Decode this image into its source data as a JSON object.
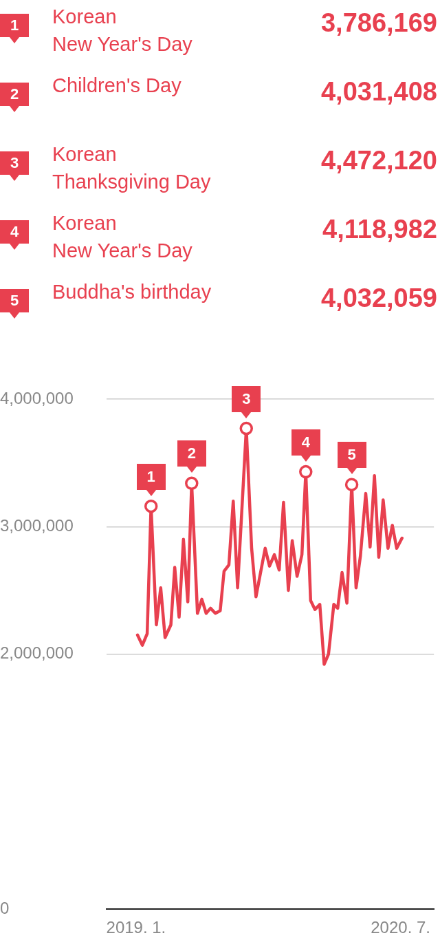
{
  "chart_data": {
    "type": "line",
    "x": [
      "2019-01-04",
      "2019-01-14",
      "2019-01-24",
      "2019-02-01",
      "2019-02-12",
      "2019-02-21",
      "2019-03-02",
      "2019-03-14",
      "2019-03-22",
      "2019-03-31",
      "2019-04-09",
      "2019-04-18",
      "2019-04-26",
      "2019-05-08",
      "2019-05-17",
      "2019-05-26",
      "2019-06-04",
      "2019-06-14",
      "2019-06-24",
      "2019-07-02",
      "2019-07-12",
      "2019-07-21",
      "2019-07-30",
      "2019-08-17",
      "2019-08-28",
      "2019-09-06",
      "2019-09-25",
      "2019-10-04",
      "2019-10-14",
      "2019-10-24",
      "2019-11-02",
      "2019-11-12",
      "2019-11-20",
      "2019-11-30",
      "2019-12-10",
      "2019-12-18",
      "2019-12-28",
      "2020-01-06",
      "2020-01-16",
      "2020-01-25",
      "2020-02-03",
      "2020-02-14",
      "2020-02-22",
      "2020-03-02",
      "2020-03-12",
      "2020-03-22",
      "2020-03-31",
      "2020-04-09",
      "2020-04-20",
      "2020-04-29",
      "2020-05-08",
      "2020-05-17",
      "2020-05-26",
      "2020-06-05",
      "2020-06-14",
      "2020-06-23",
      "2020-07-04"
    ],
    "series": [
      {
        "color": "#e8404f",
        "values": [
          2150000,
          2070000,
          2160000,
          3160000,
          2230000,
          2520000,
          2130000,
          2230000,
          2680000,
          2290000,
          2900000,
          2410000,
          3340000,
          2320000,
          2430000,
          2320000,
          2360000,
          2320000,
          2340000,
          2650000,
          2700000,
          3200000,
          2520000,
          3770000,
          2830000,
          2450000,
          2830000,
          2690000,
          2780000,
          2660000,
          3190000,
          2500000,
          2890000,
          2610000,
          2780000,
          3430000,
          2420000,
          2350000,
          2390000,
          1920000,
          2000000,
          2390000,
          2360000,
          2640000,
          2400000,
          3330000,
          2520000,
          2770000,
          3260000,
          2840000,
          3400000,
          2760000,
          3210000,
          2830000,
          3010000,
          2830000,
          2910000
        ]
      }
    ],
    "xlim": [
      "2018-11-01",
      "2020-09-08"
    ],
    "xticks": [
      {
        "value": "2019-01-01",
        "label": "2019. 1."
      },
      {
        "value": "2020-07-01",
        "label": "2020. 7."
      }
    ],
    "ylim": [
      0,
      4000000
    ],
    "yticks": [
      {
        "value": 0,
        "label": "0"
      },
      {
        "value": 2000000,
        "label": "2,000,000"
      },
      {
        "value": 3000000,
        "label": "3,000,000"
      },
      {
        "value": 4000000,
        "label": "4,000,000"
      }
    ],
    "grid": "y",
    "legend": false,
    "marker": "none",
    "line_style": "solid",
    "annotations": [
      {
        "text": "1",
        "x": "2019-02-01",
        "y": 3160000
      },
      {
        "text": "2",
        "x": "2019-04-26",
        "y": 3340000
      },
      {
        "text": "3",
        "x": "2019-08-17",
        "y": 3770000
      },
      {
        "text": "4",
        "x": "2019-12-18",
        "y": 3430000
      },
      {
        "text": "5",
        "x": "2020-03-22",
        "y": 3330000
      },
      "Korean\nNew Year's Day",
      "3,786,169",
      "Children's Day",
      "4,031,408",
      "Korean\nThanksgiving Day",
      "4,472,120",
      "Korean\nNew Year's Day",
      "4,118,982",
      "Buddha's birthday",
      "4,032,059"
    ]
  }
}
